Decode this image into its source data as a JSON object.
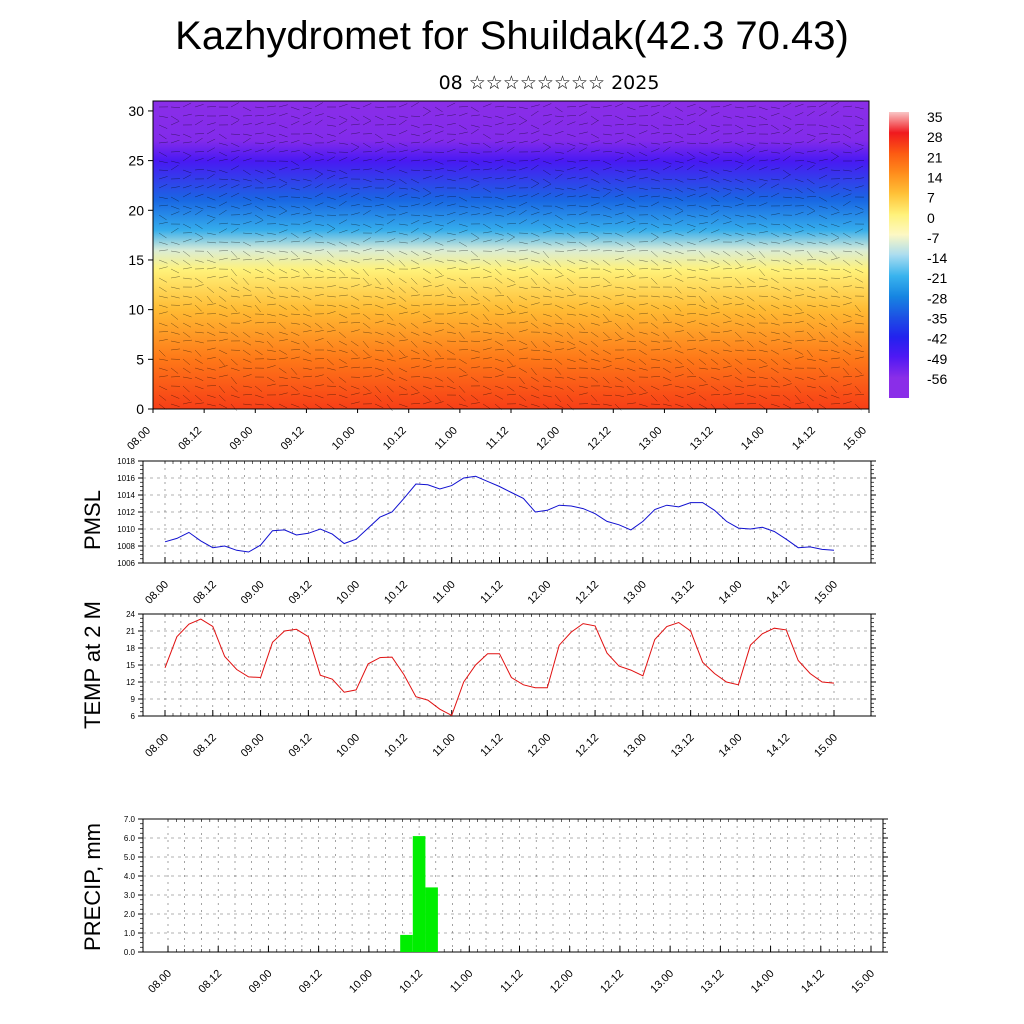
{
  "title": "Kazhydromet for Shuildak(42.3 70.43)",
  "subtitle": "08 ☆☆☆☆☆☆☆☆ 2025",
  "time_ticks": [
    "08.00",
    "08.12",
    "09.00",
    "09.12",
    "10.00",
    "10.12",
    "11.00",
    "11.12",
    "12.00",
    "12.12",
    "13.00",
    "13.12",
    "14.00",
    "14.12",
    "15.00"
  ],
  "chart_data": [
    {
      "type": "heatmap",
      "name": "cross-section",
      "ylim": [
        0,
        31
      ],
      "yticks": [
        0,
        5,
        10,
        15,
        20,
        25,
        30
      ],
      "x_ticks": [
        "08.00",
        "08.12",
        "09.00",
        "09.12",
        "10.00",
        "10.12",
        "11.00",
        "11.12",
        "12.00",
        "12.12",
        "13.00",
        "13.12",
        "14.00",
        "14.12",
        "15.00"
      ],
      "colorbar": {
        "labels": [
          "35",
          "28",
          "21",
          "14",
          "7",
          "0",
          "-7",
          "-14",
          "-21",
          "-28",
          "-35",
          "-42",
          "-49",
          "-56"
        ],
        "colors": [
          "#f9c6c6",
          "#f0181e",
          "#fc5a12",
          "#ff8e1c",
          "#ffc238",
          "#fff27a",
          "#fdf8c4",
          "#a9dcf0",
          "#3ab4ee",
          "#1686e2",
          "#1c52e4",
          "#2222ee",
          "#5018f4",
          "#8a2ee8"
        ]
      },
      "profile": [
        {
          "level": 0,
          "value": 24
        },
        {
          "level": 5,
          "value": 17
        },
        {
          "level": 10,
          "value": 8
        },
        {
          "level": 14,
          "value": 0
        },
        {
          "level": 16,
          "value": -10
        },
        {
          "level": 18,
          "value": -22
        },
        {
          "level": 21,
          "value": -32
        },
        {
          "level": 25,
          "value": -48
        },
        {
          "level": 27,
          "value": -55
        },
        {
          "level": 31,
          "value": -62
        }
      ]
    },
    {
      "type": "line",
      "name": "pmsl",
      "ylabel": "PMSL",
      "ylim": [
        1006,
        1018
      ],
      "yticks": [
        "1006",
        "1008",
        "1010",
        "1012",
        "1014",
        "1016",
        "1018"
      ],
      "color": "#1010d0",
      "x_ticks": [
        "08.00",
        "08.12",
        "09.00",
        "09.12",
        "10.00",
        "10.12",
        "11.00",
        "11.12",
        "12.00",
        "12.12",
        "13.00",
        "13.12",
        "14.00",
        "14.12",
        "15.00"
      ],
      "values": [
        1008.5,
        1008.9,
        1009.6,
        1008.6,
        1007.8,
        1008.0,
        1007.5,
        1007.3,
        1008.1,
        1009.8,
        1009.9,
        1009.3,
        1009.5,
        1010.0,
        1009.4,
        1008.3,
        1008.8,
        1010.1,
        1011.4,
        1012.0,
        1013.6,
        1015.3,
        1015.2,
        1014.7,
        1015.1,
        1016.0,
        1016.2,
        1015.6,
        1015.0,
        1014.3,
        1013.6,
        1012.0,
        1012.2,
        1012.8,
        1012.7,
        1012.4,
        1011.8,
        1010.9,
        1010.5,
        1009.9,
        1010.9,
        1012.3,
        1012.8,
        1012.6,
        1013.1,
        1013.1,
        1012.2,
        1010.9,
        1010.1,
        1010.0,
        1010.2,
        1009.7,
        1008.8,
        1007.8,
        1007.9,
        1007.6,
        1007.5
      ]
    },
    {
      "type": "line",
      "name": "temp",
      "ylabel": "TEMP at 2 M",
      "ylim": [
        6,
        24
      ],
      "yticks": [
        "6",
        "9",
        "12",
        "15",
        "18",
        "21",
        "24"
      ],
      "color": "#e01010",
      "x_ticks": [
        "08.00",
        "08.12",
        "09.00",
        "09.12",
        "10.00",
        "10.12",
        "11.00",
        "11.12",
        "12.00",
        "12.12",
        "13.00",
        "13.12",
        "14.00",
        "14.12",
        "15.00"
      ],
      "values": [
        14.5,
        20.0,
        22.2,
        23.1,
        21.8,
        16.5,
        14.2,
        12.9,
        12.8,
        19.0,
        21.0,
        21.3,
        20.0,
        13.2,
        12.5,
        10.2,
        10.6,
        15.2,
        16.3,
        16.4,
        13.3,
        9.4,
        8.8,
        7.2,
        6.1,
        12.0,
        15.0,
        17.0,
        17.0,
        12.8,
        11.5,
        11.0,
        11.0,
        18.5,
        20.8,
        22.3,
        21.9,
        17.1,
        14.8,
        14.1,
        13.1,
        19.5,
        21.8,
        22.5,
        21.0,
        15.5,
        13.5,
        12.0,
        11.5,
        18.5,
        20.5,
        21.5,
        21.2,
        15.8,
        13.5,
        12.0,
        11.8
      ]
    },
    {
      "type": "bar",
      "name": "precip",
      "ylabel": "PRECIP, mm",
      "ylim": [
        0,
        7
      ],
      "yticks": [
        "0.0",
        "1.0",
        "2.0",
        "3.0",
        "4.0",
        "5.0",
        "6.0",
        "7.0"
      ],
      "color": "#00ee00",
      "x_ticks": [
        "08.00",
        "08.12",
        "09.00",
        "09.12",
        "10.00",
        "10.12",
        "11.00",
        "11.12",
        "12.00",
        "12.12",
        "13.00",
        "13.12",
        "14.00",
        "14.12",
        "15.00"
      ],
      "bars": [
        {
          "step": 19,
          "value": 0.9
        },
        {
          "step": 20,
          "value": 6.1
        },
        {
          "step": 21,
          "value": 3.4
        }
      ]
    }
  ]
}
